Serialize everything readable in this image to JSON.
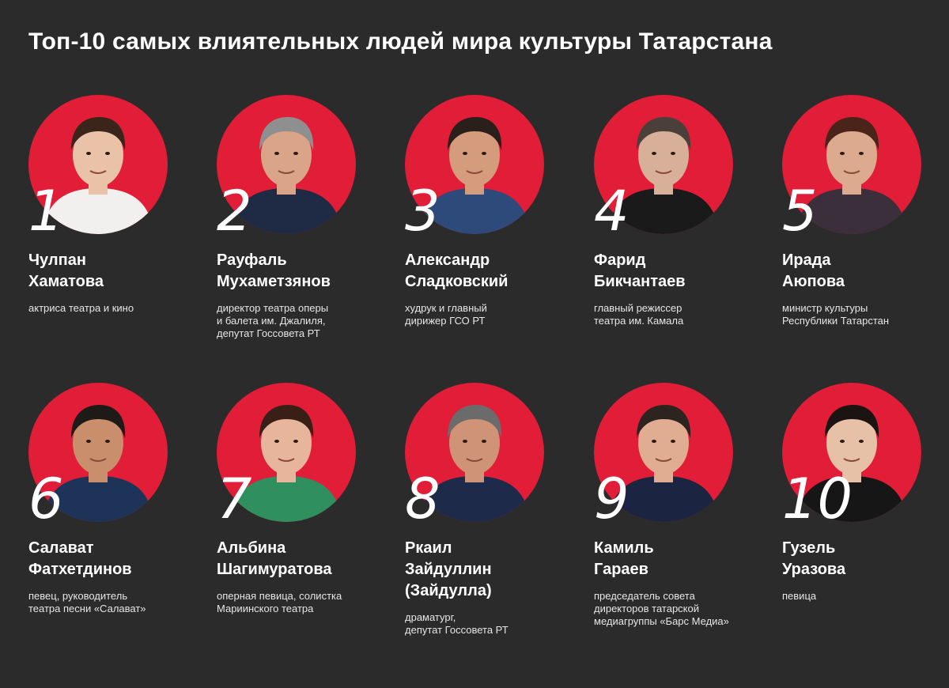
{
  "title": "Топ-10 самых влиятельных людей мира культуры Татарстана",
  "colors": {
    "background": "#2b2b2b",
    "accent": "#e21d38",
    "text": "#ffffff"
  },
  "people": [
    {
      "rank": "1",
      "name": "Чулпан\nХаматова",
      "role": "актриса театра и кино",
      "skin": "#e9c2a8",
      "hair": "#3b2419",
      "clothes": "#f2f0ee"
    },
    {
      "rank": "2",
      "name": "Рауфаль\nМухаметзянов",
      "role": "директор театра оперы\nи балета им. Джалиля,\nдепутат Госсовета РТ",
      "skin": "#d9a488",
      "hair": "#8f8f8f",
      "clothes": "#1f2a44"
    },
    {
      "rank": "3",
      "name": "Александр\nСладковский",
      "role": "худрук и главный\nдирижер ГСО РТ",
      "skin": "#d49b7d",
      "hair": "#2a1f1a",
      "clothes": "#2d4a7a"
    },
    {
      "rank": "4",
      "name": "Фарид\nБикчантаев",
      "role": "главный режиссер\nтеатра им. Камала",
      "skin": "#d8b09a",
      "hair": "#4a3f39",
      "clothes": "#1a1a1a"
    },
    {
      "rank": "5",
      "name": "Ирада\nАюпова",
      "role": "министр культуры\nРеспублики Татарстан",
      "skin": "#dcaa8f",
      "hair": "#4a2418",
      "clothes": "#3a2f3a"
    },
    {
      "rank": "6",
      "name": "Салават\nФатхетдинов",
      "role": "певец, руководитель\nтеатра песни «Салават»",
      "skin": "#c98e6c",
      "hair": "#1e1a18",
      "clothes": "#1d3458"
    },
    {
      "rank": "7",
      "name": "Альбина\nШагимуратова",
      "role": "оперная певица, солистка\nМариинского театра",
      "skin": "#e6b59b",
      "hair": "#3a1f16",
      "clothes": "#2f8f5e"
    },
    {
      "rank": "8",
      "name": "Ркаил\nЗайдуллин\n(Зайдулла)",
      "role": "драматург,\nдепутат Госсовета РТ",
      "skin": "#cf9378",
      "hair": "#6b6b6b",
      "clothes": "#1e2a4a"
    },
    {
      "rank": "9",
      "name": "Камиль\nГараев",
      "role": "председатель совета\nдиректоров татарской\nмедиагруппы «Барс Медиа»",
      "skin": "#e0ad92",
      "hair": "#2d2420",
      "clothes": "#1b2440"
    },
    {
      "rank": "10",
      "name": "Гузель\nУразова",
      "role": "певица",
      "skin": "#e7c0a8",
      "hair": "#1c1412",
      "clothes": "#161616"
    }
  ]
}
